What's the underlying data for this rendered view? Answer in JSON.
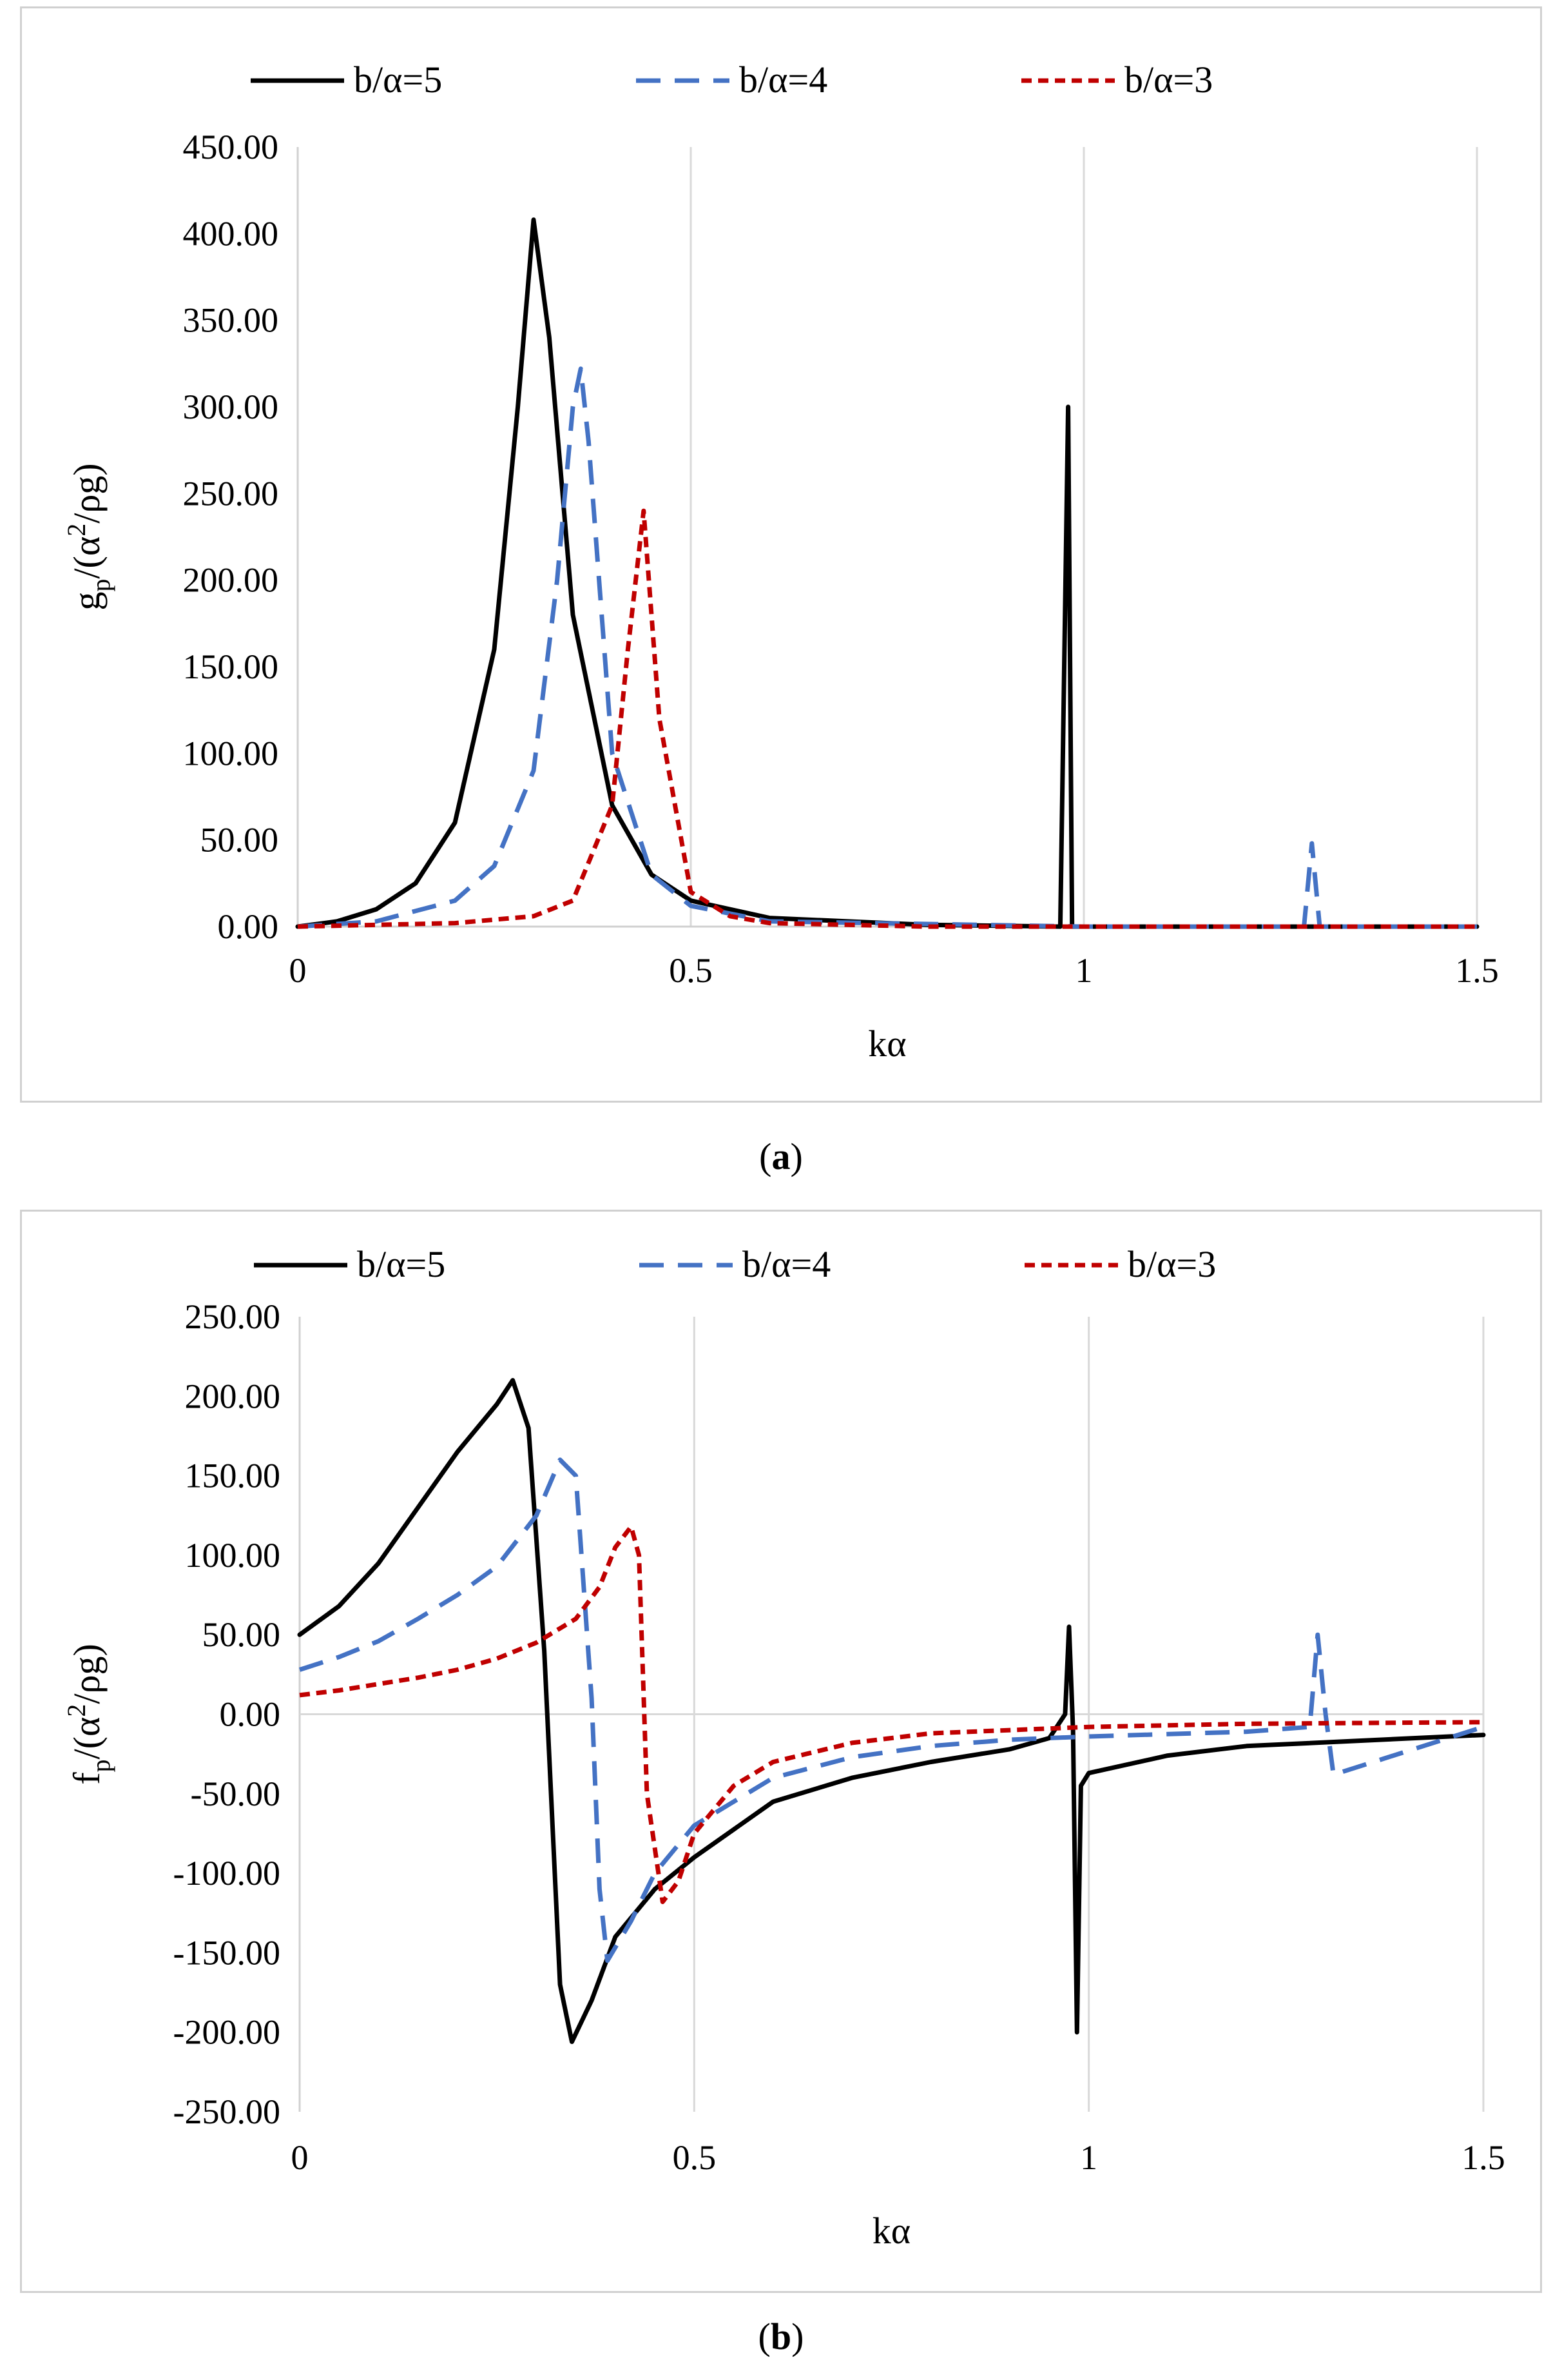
{
  "chart_data": [
    {
      "id": "a",
      "type": "line",
      "caption_letter": "a",
      "xlabel": "kα",
      "ylabel": "g_p/(α²/ρg)",
      "ylabel_main": "g",
      "ylabel_sub": "p",
      "ylabel_rest1": "/(α",
      "ylabel_sup": "2",
      "ylabel_rest2": "/ρg)",
      "xlim": [
        0,
        1.5
      ],
      "ylim": [
        0,
        450
      ],
      "xticks": [
        0,
        0.5,
        1,
        1.5
      ],
      "xtick_labels": [
        "0",
        "0.5",
        "1",
        "1.5"
      ],
      "yticks": [
        0,
        50,
        100,
        150,
        200,
        250,
        300,
        350,
        400,
        450
      ],
      "ytick_labels": [
        "0.00",
        "50.00",
        "100.00",
        "150.00",
        "200.00",
        "250.00",
        "300.00",
        "350.00",
        "400.00",
        "450.00"
      ],
      "grid": "vertical",
      "legend_position": "top",
      "series": [
        {
          "name": "b/α=5",
          "color": "#000000",
          "dash": "solid",
          "x": [
            0,
            0.05,
            0.1,
            0.15,
            0.2,
            0.25,
            0.28,
            0.3,
            0.32,
            0.35,
            0.4,
            0.45,
            0.5,
            0.6,
            0.8,
            0.97,
            0.98,
            0.985,
            0.99,
            1.0,
            1.2,
            1.5
          ],
          "y": [
            0,
            3,
            10,
            25,
            60,
            160,
            300,
            408,
            340,
            180,
            70,
            30,
            15,
            5,
            1,
            0,
            300,
            0,
            0,
            0,
            0,
            0
          ]
        },
        {
          "name": "b/α=4",
          "color": "#4472c4",
          "dash": "dashed",
          "x": [
            0,
            0.1,
            0.2,
            0.25,
            0.3,
            0.33,
            0.35,
            0.36,
            0.37,
            0.4,
            0.45,
            0.5,
            0.6,
            1.0,
            1.28,
            1.29,
            1.3,
            1.5
          ],
          "y": [
            0,
            3,
            15,
            35,
            90,
            200,
            300,
            322,
            280,
            100,
            30,
            12,
            3,
            0,
            0,
            48,
            0,
            0
          ]
        },
        {
          "name": "b/α=3",
          "color": "#c00000",
          "dash": "dotted",
          "x": [
            0,
            0.1,
            0.2,
            0.3,
            0.35,
            0.4,
            0.42,
            0.44,
            0.46,
            0.5,
            0.55,
            0.6,
            0.8,
            1.5
          ],
          "y": [
            0,
            1,
            2,
            6,
            15,
            70,
            160,
            240,
            120,
            20,
            6,
            2,
            0,
            0
          ]
        }
      ]
    },
    {
      "id": "b",
      "type": "line",
      "caption_letter": "b",
      "xlabel": "kα",
      "ylabel": "f_p/(α²/ρg)",
      "ylabel_main": "f",
      "ylabel_sub": "p",
      "ylabel_rest1": "/(α",
      "ylabel_sup": "2",
      "ylabel_rest2": "/ρg)",
      "xlim": [
        0,
        1.5
      ],
      "ylim": [
        -250,
        250
      ],
      "xticks": [
        0,
        0.5,
        1,
        1.5
      ],
      "xtick_labels": [
        "0",
        "0.5",
        "1",
        "1.5"
      ],
      "yticks": [
        -250,
        -200,
        -150,
        -100,
        -50,
        0,
        50,
        100,
        150,
        200,
        250
      ],
      "ytick_labels": [
        "-250.00",
        "-200.00",
        "-150.00",
        "-100.00",
        "-50.00",
        "0.00",
        "50.00",
        "100.00",
        "150.00",
        "200.00",
        "250.00"
      ],
      "grid": "vertical",
      "legend_position": "top",
      "series": [
        {
          "name": "b/α=5",
          "color": "#000000",
          "dash": "solid",
          "x": [
            0,
            0.05,
            0.1,
            0.15,
            0.2,
            0.25,
            0.27,
            0.29,
            0.31,
            0.33,
            0.345,
            0.37,
            0.4,
            0.45,
            0.5,
            0.6,
            0.7,
            0.8,
            0.9,
            0.95,
            0.97,
            0.975,
            0.98,
            0.985,
            0.99,
            1.0,
            1.1,
            1.2,
            1.5
          ],
          "y": [
            50,
            68,
            95,
            130,
            165,
            195,
            210,
            180,
            40,
            -170,
            -206,
            -180,
            -140,
            -110,
            -90,
            -55,
            -40,
            -30,
            -22,
            -15,
            0,
            55,
            -10,
            -200,
            -45,
            -37,
            -26,
            -20,
            -13
          ]
        },
        {
          "name": "b/α=4",
          "color": "#4472c4",
          "dash": "dashed",
          "x": [
            0,
            0.05,
            0.1,
            0.15,
            0.2,
            0.25,
            0.3,
            0.33,
            0.35,
            0.37,
            0.38,
            0.39,
            0.42,
            0.45,
            0.5,
            0.6,
            0.7,
            0.8,
            0.9,
            1.0,
            1.2,
            1.28,
            1.29,
            1.3,
            1.31,
            1.5
          ],
          "y": [
            28,
            36,
            46,
            60,
            75,
            93,
            125,
            160,
            150,
            10,
            -110,
            -155,
            -130,
            -100,
            -70,
            -40,
            -27,
            -20,
            -16,
            -14,
            -11,
            -8,
            50,
            0,
            -38,
            -8
          ]
        },
        {
          "name": "b/α=3",
          "color": "#c00000",
          "dash": "dotted",
          "x": [
            0,
            0.05,
            0.1,
            0.15,
            0.2,
            0.25,
            0.3,
            0.35,
            0.38,
            0.4,
            0.42,
            0.43,
            0.44,
            0.46,
            0.48,
            0.5,
            0.55,
            0.6,
            0.7,
            0.8,
            1.0,
            1.2,
            1.5
          ],
          "y": [
            12,
            15,
            19,
            23,
            28,
            35,
            45,
            60,
            80,
            105,
            118,
            100,
            -50,
            -118,
            -105,
            -75,
            -45,
            -30,
            -18,
            -12,
            -8,
            -6,
            -5
          ]
        }
      ]
    }
  ]
}
